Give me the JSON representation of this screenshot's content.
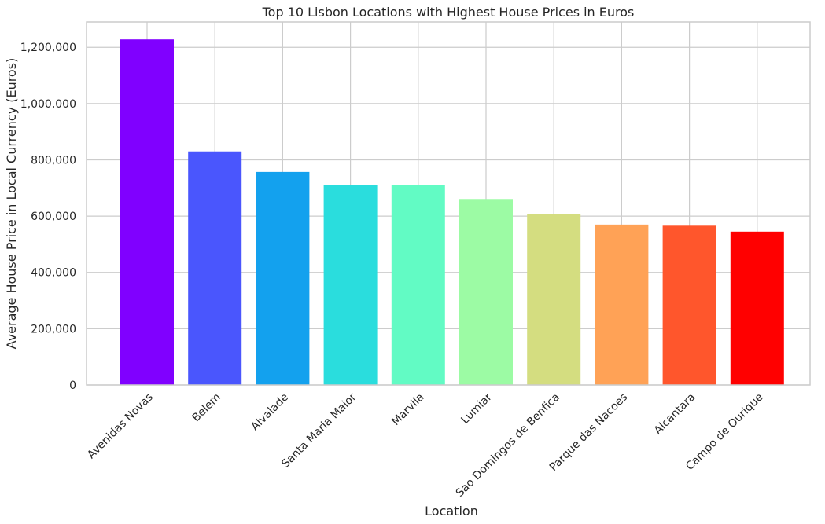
{
  "chart_data": {
    "type": "bar",
    "title": "Top 10 Lisbon Locations with Highest House Prices in Euros",
    "xlabel": "Location",
    "ylabel": "Average House Price in Local Currency (Euros)",
    "ylim": [
      0,
      1290000
    ],
    "yticks": [
      0,
      200000,
      400000,
      600000,
      800000,
      1000000,
      1200000
    ],
    "ytick_labels": [
      "0",
      "200,000",
      "400,000",
      "600,000",
      "800,000",
      "1,000,000",
      "1,200,000"
    ],
    "grid": true,
    "categories": [
      "Avenidas Novas",
      "Belem",
      "Alvalade",
      "Santa Maria Maior",
      "Marvila",
      "Lumiar",
      "Sao Domingos de Benfica",
      "Parque das Nacoes",
      "Alcantara",
      "Campo de Ourique"
    ],
    "values": [
      1228000,
      830000,
      757000,
      712000,
      710000,
      661000,
      607000,
      570000,
      566000,
      545000
    ],
    "colors": [
      "#8000ff",
      "#4a56fd",
      "#13a1ee",
      "#2adddd",
      "#62fbc4",
      "#9cfba4",
      "#d4dd80",
      "#ffa256",
      "#ff562c",
      "#ff0000"
    ]
  }
}
